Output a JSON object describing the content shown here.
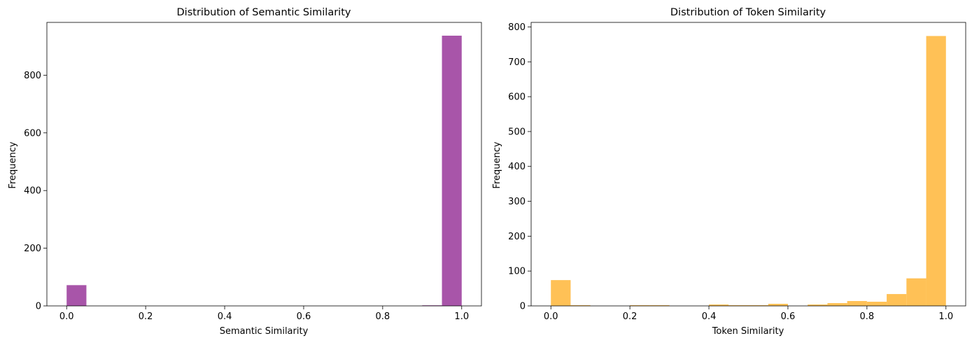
{
  "chart_data": [
    {
      "type": "bar",
      "title": "Distribution of Semantic Similarity",
      "xlabel": "Semantic Similarity",
      "ylabel": "Frequency",
      "color": "#A34CA4",
      "xlim": [
        -0.05,
        1.05
      ],
      "ylim": [
        0,
        983
      ],
      "xticks": [
        0.0,
        0.2,
        0.4,
        0.6,
        0.8,
        1.0
      ],
      "xtick_labels": [
        "0.0",
        "0.2",
        "0.4",
        "0.6",
        "0.8",
        "1.0"
      ],
      "yticks": [
        0,
        200,
        400,
        600,
        800
      ],
      "ytick_labels": [
        "0",
        "200",
        "400",
        "600",
        "800"
      ],
      "bin_edges": [
        0.0,
        0.05,
        0.1,
        0.15,
        0.2,
        0.25,
        0.3,
        0.35,
        0.4,
        0.45,
        0.5,
        0.55,
        0.6,
        0.65,
        0.7,
        0.75,
        0.8,
        0.85,
        0.9,
        0.95,
        1.0
      ],
      "values": [
        72,
        0,
        0,
        0,
        0,
        0,
        0,
        0,
        0,
        0,
        0,
        0,
        0,
        0,
        0,
        0,
        0,
        0,
        2,
        937
      ],
      "grid": false
    },
    {
      "type": "bar",
      "title": "Distribution of Token Similarity",
      "xlabel": "Token Similarity",
      "ylabel": "Frequency",
      "color": "#FFBE4D",
      "xlim": [
        -0.05,
        1.05
      ],
      "ylim": [
        0,
        813
      ],
      "xticks": [
        0.0,
        0.2,
        0.4,
        0.6,
        0.8,
        1.0
      ],
      "xtick_labels": [
        "0.0",
        "0.2",
        "0.4",
        "0.6",
        "0.8",
        "1.0"
      ],
      "yticks": [
        0,
        100,
        200,
        300,
        400,
        500,
        600,
        700,
        800
      ],
      "ytick_labels": [
        "0",
        "100",
        "200",
        "300",
        "400",
        "500",
        "600",
        "700",
        "800"
      ],
      "bin_edges": [
        0.0,
        0.05,
        0.1,
        0.15,
        0.2,
        0.25,
        0.3,
        0.35,
        0.4,
        0.45,
        0.5,
        0.55,
        0.6,
        0.65,
        0.7,
        0.75,
        0.8,
        0.85,
        0.9,
        0.95,
        1.0
      ],
      "values": [
        74,
        2,
        0,
        0,
        2,
        2,
        0,
        0,
        4,
        2,
        2,
        6,
        0,
        4,
        8,
        14,
        12,
        34,
        79,
        774
      ],
      "grid": false
    }
  ]
}
